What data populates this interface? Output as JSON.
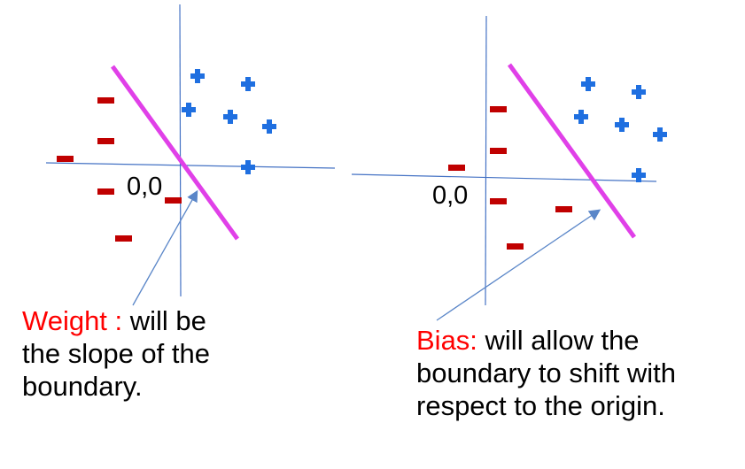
{
  "colors": {
    "axis": "#4472c4",
    "boundary": "#e040e8",
    "negative": "#c00000",
    "positive": "#1f6fe0",
    "arrow": "#5a86c8",
    "label_accent": "#ff0000",
    "text": "#000000"
  },
  "symbols": {
    "positive": "+",
    "negative": "–"
  },
  "left_panel": {
    "origin_label": "0,0",
    "caption": {
      "term": "Weight :",
      "rest_line1": " will be",
      "line2": "the slope of the",
      "line3": "boundary."
    }
  },
  "right_panel": {
    "origin_label": "0,0",
    "caption": {
      "term": "Bias:",
      "rest_line1": " will allow the",
      "line2": "boundary to shift with",
      "line3": "respect to the origin."
    }
  }
}
